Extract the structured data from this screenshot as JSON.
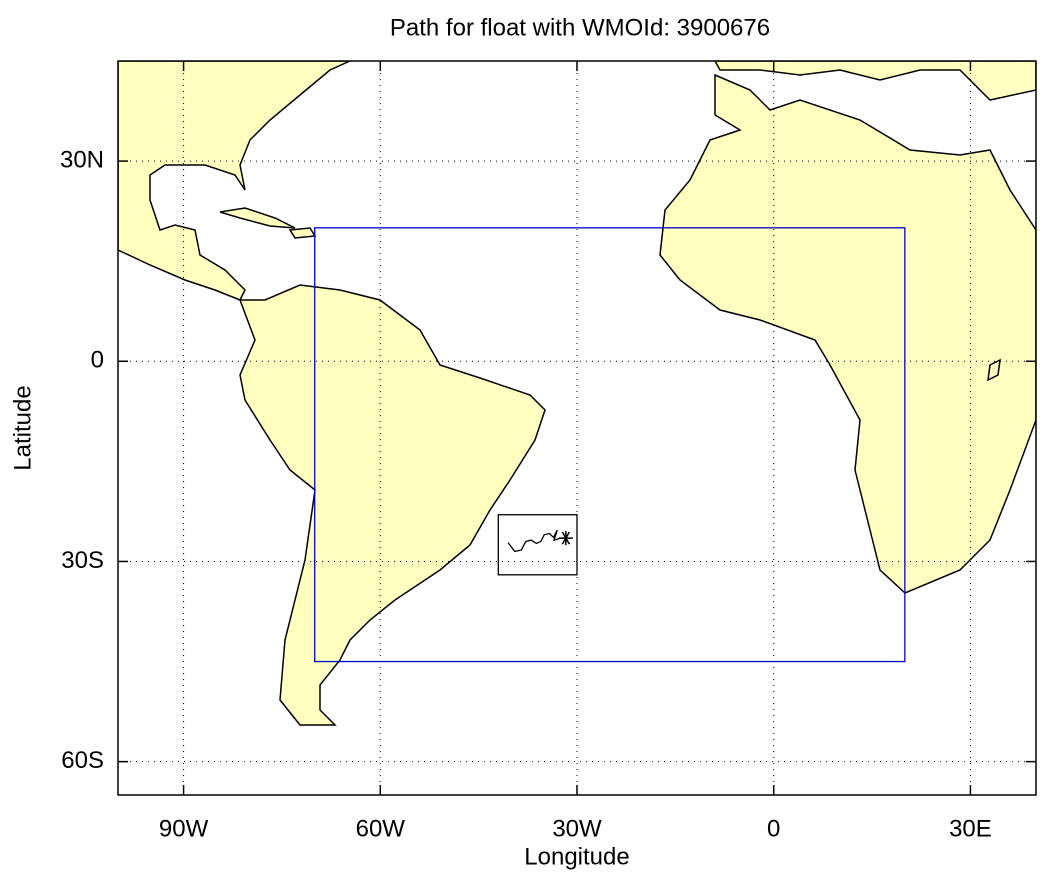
{
  "map": {
    "title": "Path for float with WMOId: 3900676",
    "xlabel": "Longitude",
    "ylabel": "Latitude",
    "xlim": [
      -100,
      40
    ],
    "ylim": [
      -65,
      45
    ],
    "xticks": [
      {
        "value": -90,
        "label": "90W"
      },
      {
        "value": -60,
        "label": "60W"
      },
      {
        "value": -30,
        "label": "30W"
      },
      0,
      {
        "value": 30,
        "label": "30E"
      }
    ],
    "yticks": [
      {
        "value": 30,
        "label": "30N"
      },
      0,
      {
        "value": -30,
        "label": "30S"
      },
      {
        "value": -60,
        "label": "60S"
      }
    ],
    "grid": true,
    "regions": [
      {
        "lon": [
          -70,
          20
        ],
        "lat": [
          -45,
          20
        ],
        "color": "#0000cc"
      },
      {
        "lon": [
          -42,
          -30
        ],
        "lat": [
          -32,
          -23
        ],
        "color": "#000000"
      }
    ],
    "track": {
      "lon": [
        -40.5,
        -39.5,
        -38.5,
        -37.8,
        -37.0,
        -36.2,
        -35.5,
        -35.0,
        -34.2,
        -33.6,
        -33.0,
        -33.5,
        -32.5,
        -31.7
      ],
      "lat": [
        -27.2,
        -28.5,
        -28.3,
        -27.0,
        -26.8,
        -27.3,
        -27.0,
        -26.0,
        -25.8,
        -26.4,
        -25.3,
        -26.8,
        -26.5,
        -26.5
      ]
    }
  }
}
